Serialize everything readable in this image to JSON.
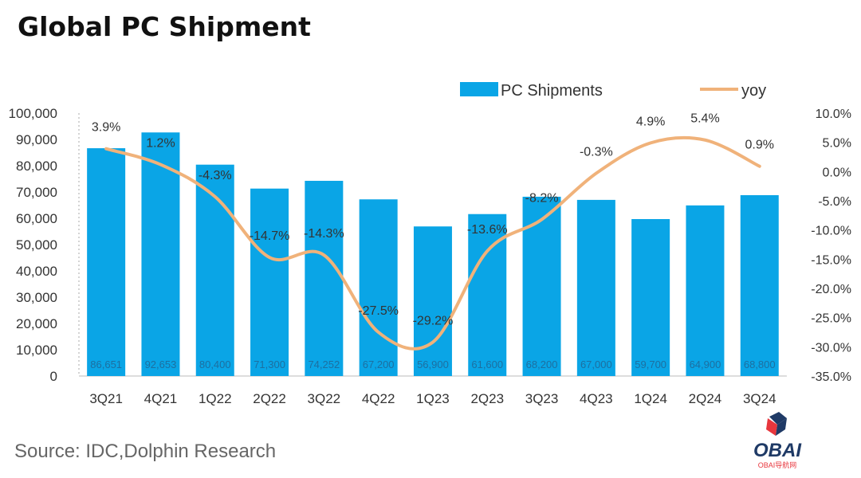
{
  "title": "Global PC Shipment",
  "source": "Source: IDC,Dolphin Research",
  "logo": {
    "text": "OBAI",
    "subtext": "OBAI导航网"
  },
  "chart_data": {
    "type": "bar+line",
    "categories": [
      "3Q21",
      "4Q21",
      "1Q22",
      "2Q22",
      "3Q22",
      "4Q22",
      "1Q23",
      "2Q23",
      "3Q23",
      "4Q23",
      "1Q24",
      "2Q24",
      "3Q24"
    ],
    "series": [
      {
        "name": "PC Shipments",
        "type": "bar",
        "axis": "left",
        "color": "#0aa5e6",
        "values": [
          86651,
          92653,
          80400,
          71300,
          74252,
          67200,
          56900,
          61600,
          68200,
          67000,
          59700,
          64900,
          68800
        ],
        "labels": [
          "86,651",
          "92,653",
          "80,400",
          "71,300",
          "74,252",
          "67,200",
          "56,900",
          "61,600",
          "68,200",
          "67,000",
          "59,700",
          "64,900",
          "68,800"
        ]
      },
      {
        "name": "yoy",
        "type": "line",
        "axis": "right",
        "color": "#f0b27a",
        "values": [
          3.9,
          1.2,
          -4.3,
          -14.7,
          -14.3,
          -27.5,
          -29.2,
          -13.6,
          -8.2,
          -0.3,
          4.9,
          5.4,
          0.9
        ],
        "labels": [
          "3.9%",
          "1.2%",
          "-4.3%",
          "-14.7%",
          "-14.3%",
          "-27.5%",
          "-29.2%",
          "-13.6%",
          "-8.2%",
          "-0.3%",
          "4.9%",
          "5.4%",
          "0.9%"
        ]
      }
    ],
    "yleft": {
      "ylim": [
        0,
        100000
      ],
      "ticks": [
        "0",
        "10,000",
        "20,000",
        "30,000",
        "40,000",
        "50,000",
        "60,000",
        "70,000",
        "80,000",
        "90,000",
        "100,000"
      ]
    },
    "yright": {
      "ylim": [
        -35,
        10
      ],
      "ticks": [
        "-35.0%",
        "-30.0%",
        "-25.0%",
        "-20.0%",
        "-15.0%",
        "-10.0%",
        "-5.0%",
        "0.0%",
        "5.0%",
        "10.0%"
      ]
    },
    "legend": "top-right",
    "grid": false
  }
}
